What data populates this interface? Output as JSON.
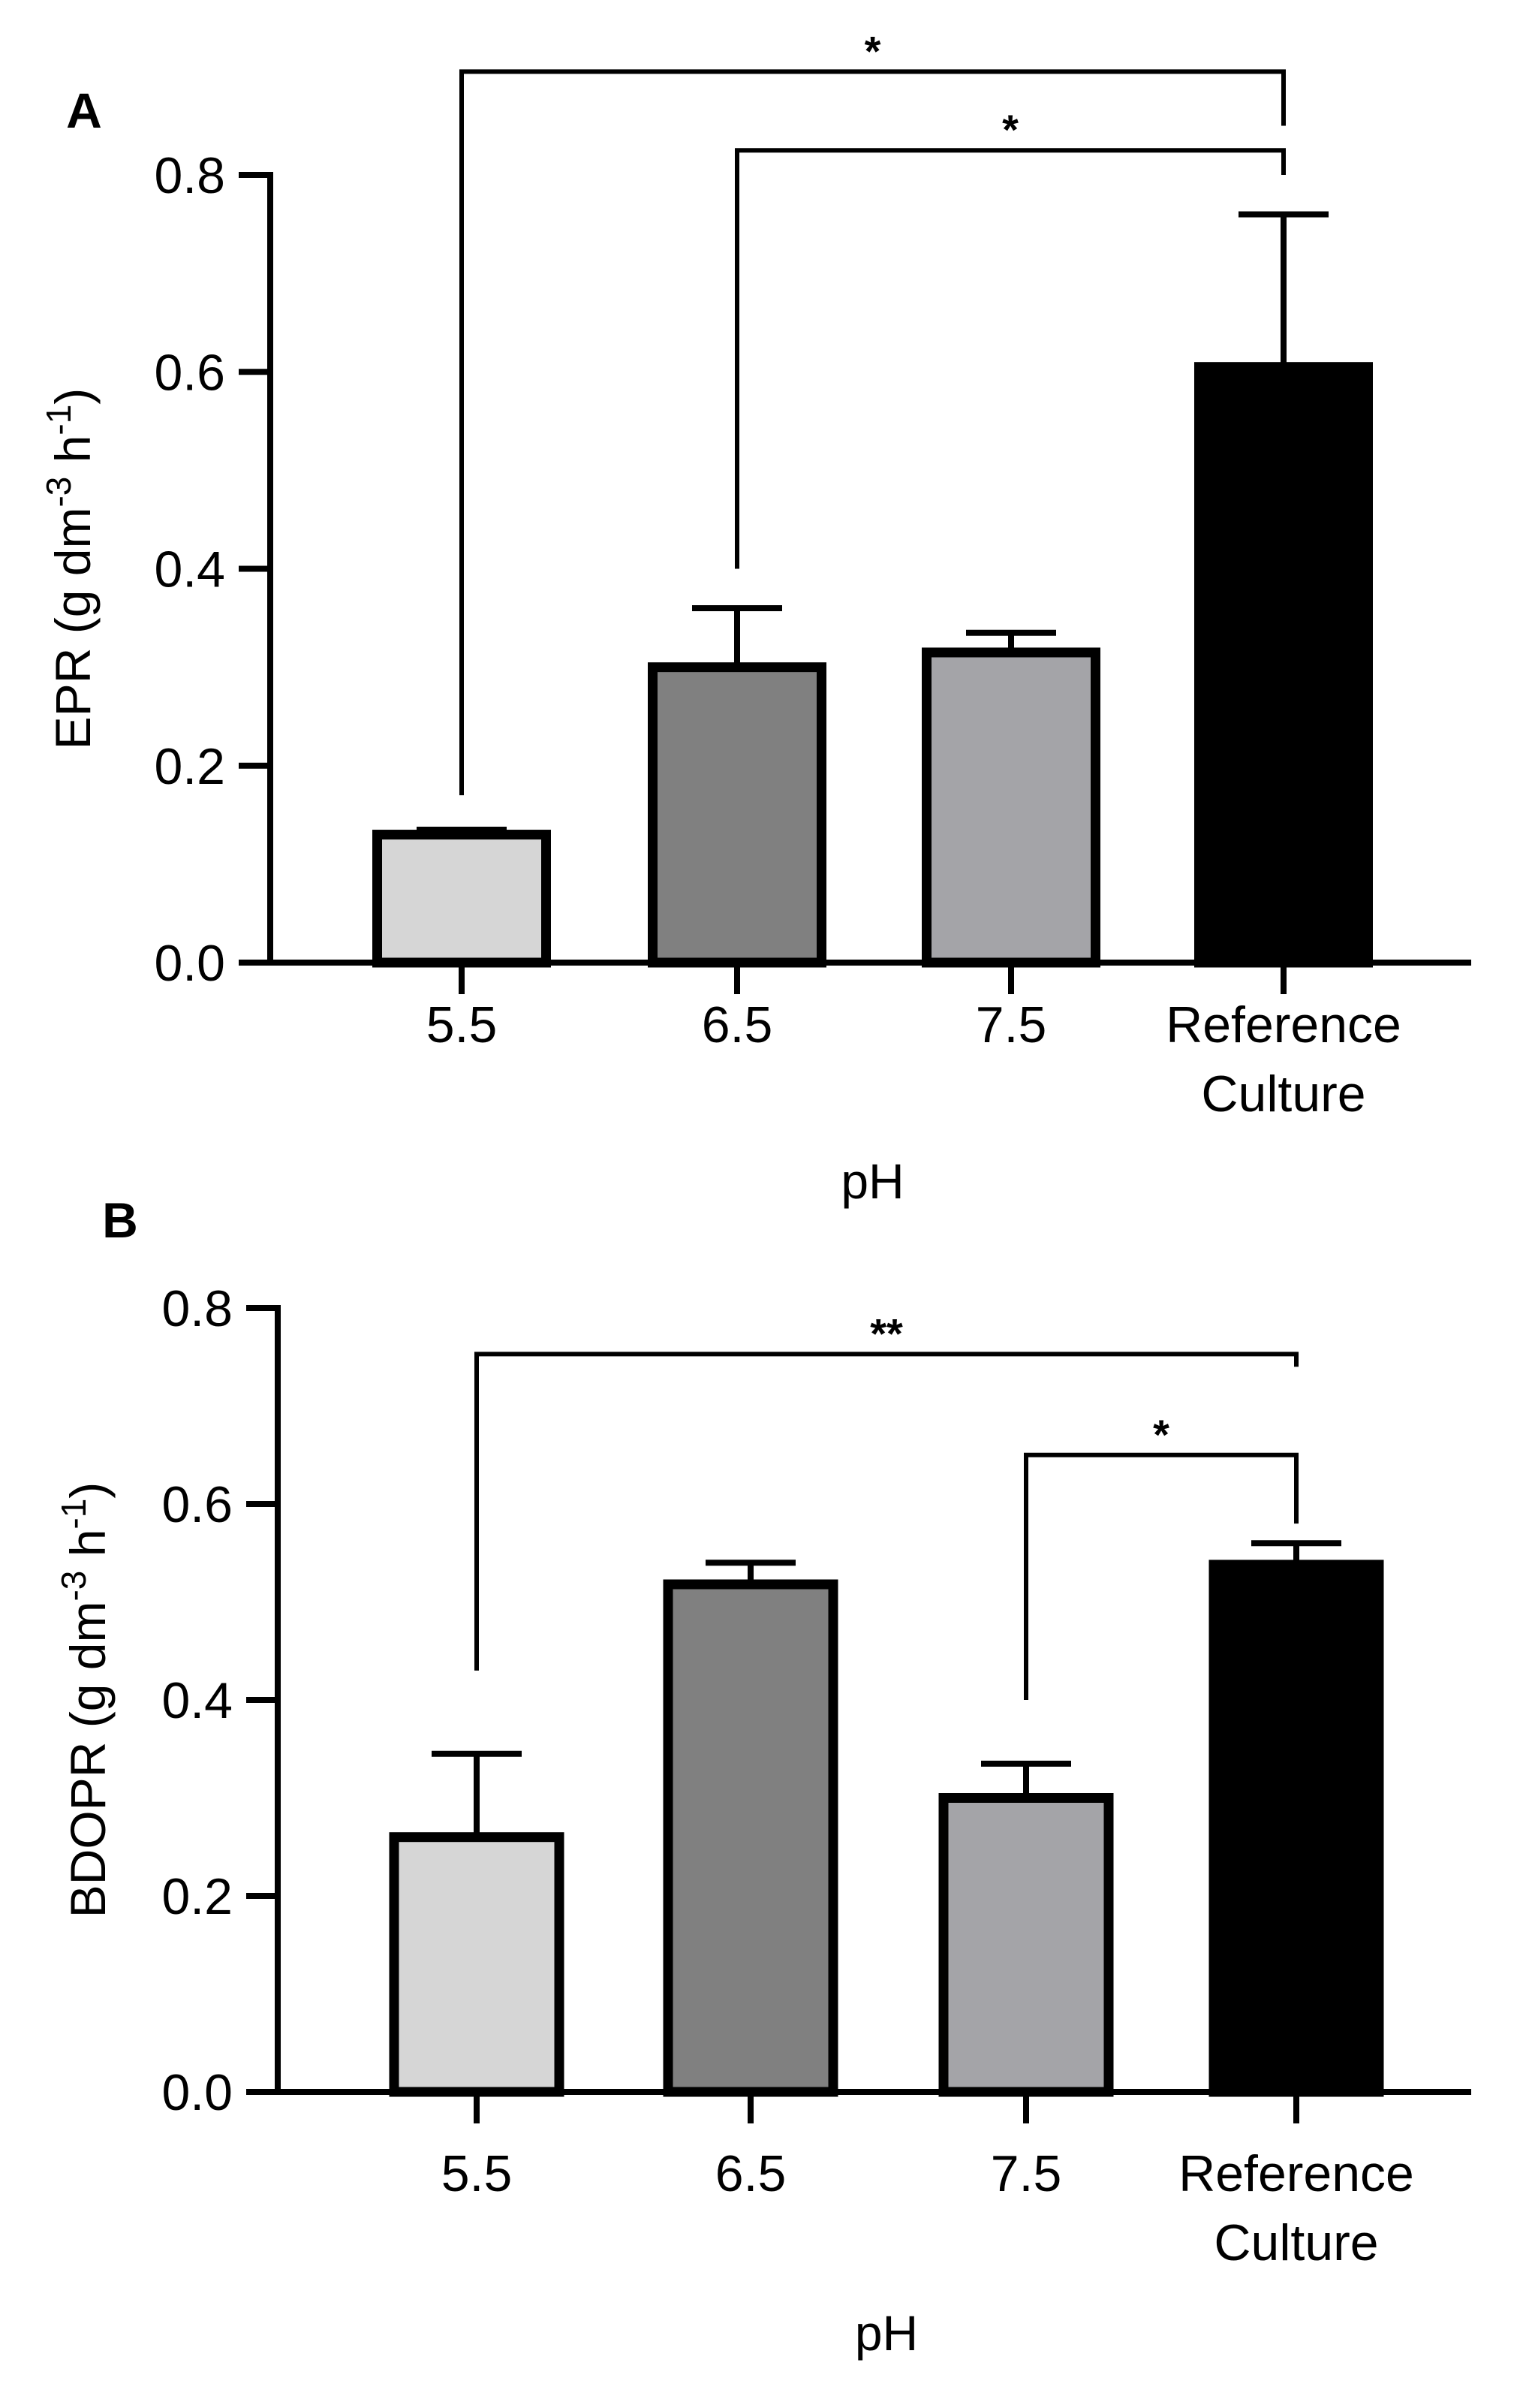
{
  "chart_data": [
    {
      "panel": "A",
      "type": "bar",
      "categories": [
        [
          "5.5"
        ],
        [
          "6.5"
        ],
        [
          "7.5"
        ],
        [
          "Reference",
          "Culture"
        ]
      ],
      "values": [
        0.13,
        0.3,
        0.315,
        0.605
      ],
      "errors": [
        0.005,
        0.06,
        0.02,
        0.155
      ],
      "colors": [
        "#d6d6d6",
        "#808080",
        "#a4a4a8",
        "#000000"
      ],
      "xlabel": "pH",
      "ylabel": "EPR (g dm",
      "ylabel_sup1": "-3",
      "ylabel_mid": " h",
      "ylabel_sup2": "-1",
      "ylabel_end": ")",
      "ylim": [
        0,
        0.8
      ],
      "yticks": [
        "0.0",
        "0.2",
        "0.4",
        "0.6",
        "0.8"
      ],
      "significance": [
        {
          "from": 0,
          "to": 3,
          "label": "*",
          "start_value": 0.17,
          "end_value": 0.85,
          "height_value": 0.905
        },
        {
          "from": 1,
          "to": 3,
          "label": "*",
          "start_value": 0.4,
          "end_value": 0.8,
          "height_value": 0.825
        }
      ]
    },
    {
      "panel": "B",
      "type": "bar",
      "categories": [
        [
          "5.5"
        ],
        [
          "6.5"
        ],
        [
          "7.5"
        ],
        [
          "Reference",
          "Culture"
        ]
      ],
      "values": [
        0.26,
        0.518,
        0.3,
        0.538
      ],
      "errors": [
        0.085,
        0.022,
        0.035,
        0.022
      ],
      "colors": [
        "#d6d6d6",
        "#808080",
        "#a4a4a8",
        "#000000"
      ],
      "xlabel": "pH",
      "ylabel": "BDOPR (g dm",
      "ylabel_sup1": "-3",
      "ylabel_mid": " h",
      "ylabel_sup2": "-1",
      "ylabel_end": ")",
      "ylim": [
        0,
        0.8
      ],
      "yticks": [
        "0.0",
        "0.2",
        "0.4",
        "0.6",
        "0.8"
      ],
      "significance": [
        {
          "from": 0,
          "to": 3,
          "label": "**",
          "start_value": 0.43,
          "end_value": 0.74,
          "height_value": 0.753
        },
        {
          "from": 2,
          "to": 3,
          "label": "*",
          "start_value": 0.4,
          "end_value": 0.58,
          "height_value": 0.65
        }
      ]
    }
  ]
}
